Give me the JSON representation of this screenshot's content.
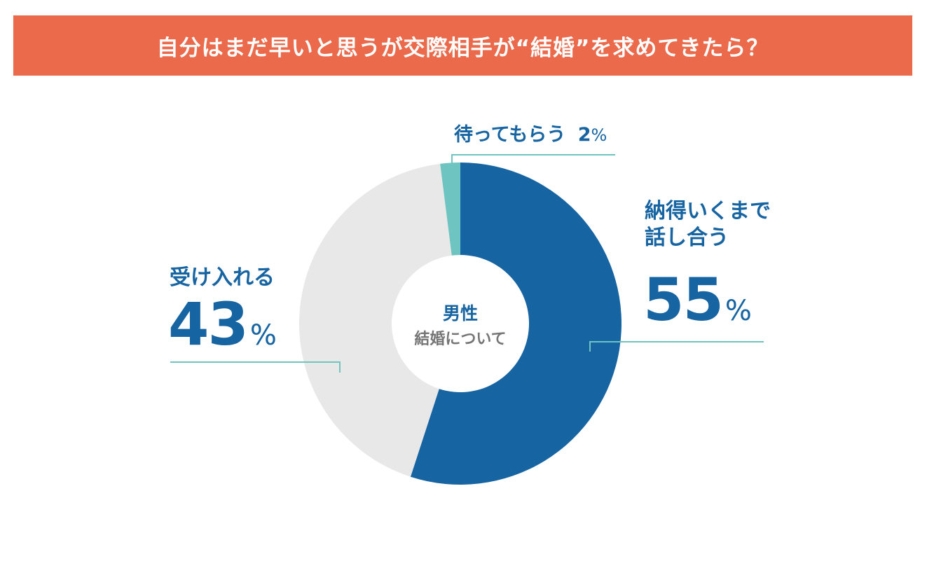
{
  "header": {
    "title": "自分はまだ早いと思うが交際相手が“結婚”を求めてきたら？"
  },
  "center": {
    "line1": "男性",
    "line2": "結婚について"
  },
  "labels": {
    "wait": {
      "name": "待ってもらう",
      "value": "2",
      "unit": "%"
    },
    "discuss": {
      "line1": "納得いくまで",
      "line2": "話し合う",
      "value": "55",
      "unit": "%"
    },
    "accept": {
      "name": "受け入れる",
      "value": "43",
      "unit": "%"
    }
  },
  "colors": {
    "banner": "#ea6a4b",
    "discuss": "#1764a2",
    "accept": "#e8e8e8",
    "wait": "#6ec4c0",
    "leader": "#6ec4c0"
  },
  "chart_data": {
    "type": "pie",
    "title": "自分はまだ早いと思うが交際相手が“結婚”を求めてきたら？",
    "categories": [
      "納得いくまで話し合う",
      "受け入れる",
      "待ってもらう"
    ],
    "values": [
      55,
      43,
      2
    ],
    "unit": "%"
  }
}
